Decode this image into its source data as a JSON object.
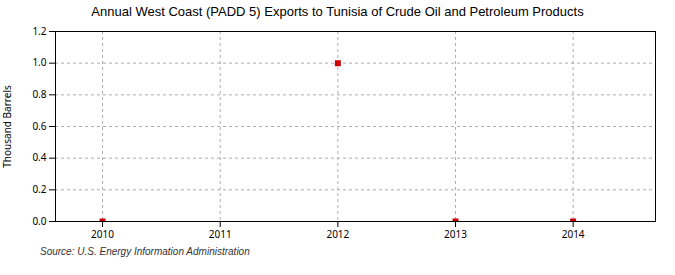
{
  "chart_data": {
    "type": "scatter",
    "title": "Annual West Coast (PADD 5) Exports to Tunisia of Crude Oil and Petroleum Products",
    "ylabel": "Thousand Barrels",
    "source": "Source: U.S. Energy Information Administration",
    "x": [
      2010,
      2012,
      2013,
      2014
    ],
    "values": [
      0.0,
      1.0,
      0.0,
      0.0
    ],
    "color": "#cc0000",
    "marker": "square",
    "xlim": [
      2009.6,
      2014.7
    ],
    "xticks": [
      2010,
      2011,
      2012,
      2013,
      2014
    ],
    "ylim": [
      0.0,
      1.2
    ],
    "yticks": [
      {
        "value": 0.0,
        "label": "0.0"
      },
      0.2,
      0.4,
      0.6,
      0.8,
      {
        "value": 1.0,
        "label": "1.0"
      },
      1.2
    ],
    "grid": true
  }
}
